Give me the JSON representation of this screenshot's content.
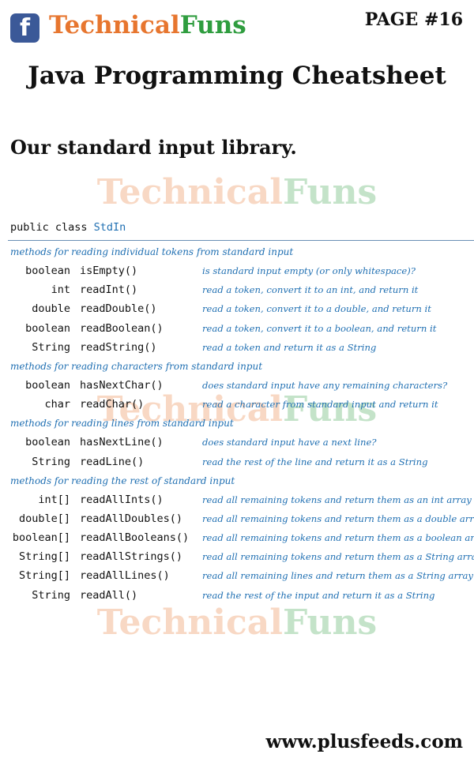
{
  "header": {
    "fb_glyph": "f",
    "brand_part1": "Technical",
    "brand_part2": "Funs",
    "page_label": "PAGE #16"
  },
  "title": "Java Programming Cheatsheet",
  "subtitle": "Our standard input library.",
  "watermark": {
    "part1": "Technical",
    "part2": "Funs"
  },
  "class_decl": {
    "prefix": "public class ",
    "name": "StdIn"
  },
  "sections": [
    {
      "heading": "methods for reading individual tokens from standard input",
      "rows": [
        {
          "type": "boolean",
          "method": "isEmpty()",
          "desc": "is standard input empty (or only whitespace)?"
        },
        {
          "type": "int",
          "method": "readInt()",
          "desc": "read a token, convert it to an int, and return it"
        },
        {
          "type": "double",
          "method": "readDouble()",
          "desc": "read a token, convert it to a double, and return it"
        },
        {
          "type": "boolean",
          "method": "readBoolean()",
          "desc": "read a token, convert it to a boolean, and return it"
        },
        {
          "type": "String",
          "method": "readString()",
          "desc": "read a token and return it as a String"
        }
      ]
    },
    {
      "heading": "methods for reading characters from standard input",
      "rows": [
        {
          "type": "boolean",
          "method": "hasNextChar()",
          "desc": "does standard input have any remaining characters?"
        },
        {
          "type": "char",
          "method": "readChar()",
          "desc": "read a character from standard input and return it"
        }
      ]
    },
    {
      "heading": "methods for reading lines from standard input",
      "rows": [
        {
          "type": "boolean",
          "method": "hasNextLine()",
          "desc": "does standard input have a next line?"
        },
        {
          "type": "String",
          "method": "readLine()",
          "desc": "read the rest of the line and return it as a String"
        }
      ]
    },
    {
      "heading": "methods for reading the rest of standard input",
      "rows": [
        {
          "type": "int[]",
          "method": "readAllInts()",
          "desc": "read all remaining tokens and return them as an int array"
        },
        {
          "type": "double[]",
          "method": "readAllDoubles()",
          "desc": "read all remaining tokens and return them as a double array"
        },
        {
          "type": "boolean[]",
          "method": "readAllBooleans()",
          "desc": "read all remaining tokens and return them as a boolean array"
        },
        {
          "type": "String[]",
          "method": "readAllStrings()",
          "desc": "read all remaining tokens and return them as a String array"
        },
        {
          "type": "String[]",
          "method": "readAllLines()",
          "desc": "read all remaining lines and return them as a String array"
        },
        {
          "type": "String",
          "method": "readAll()",
          "desc": "read the rest of the input and return it as a String"
        }
      ]
    }
  ],
  "footer": {
    "url": "www.plusfeeds.com"
  },
  "colors": {
    "brand_orange": "#e7762f",
    "brand_green": "#2f9d3f",
    "facebook_blue": "#3b5998",
    "api_blue": "#1f6fb2"
  }
}
